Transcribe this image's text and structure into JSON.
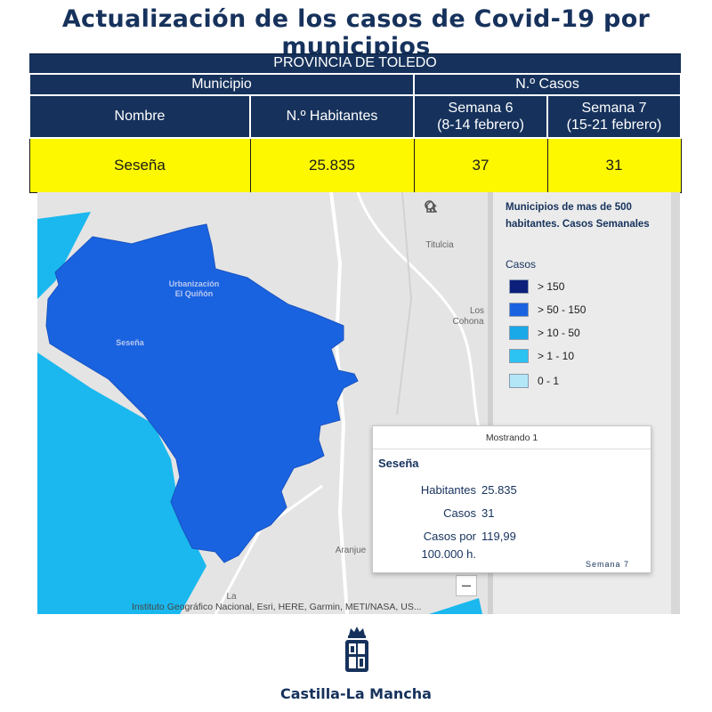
{
  "title": "Actualización de los casos de Covid-19 por municipios",
  "table": {
    "province": "PROVINCIA DE TOLEDO",
    "group_municipio": "Municipio",
    "group_casos": "N.º Casos",
    "col_nombre": "Nombre",
    "col_habitantes": "N.º Habitantes",
    "col_semana6_line1": "Semana 6",
    "col_semana6_line2": "(8-14 febrero)",
    "col_semana7_line1": "Semana 7",
    "col_semana7_line2": "(15-21 febrero)",
    "row": {
      "nombre": "Seseña",
      "habitantes": "25.835",
      "semana6": "37",
      "semana7": "31"
    }
  },
  "map": {
    "labels": {
      "urbanizacion_line1": "Urbanización",
      "urbanizacion_line2": "El Quiñón",
      "sesena": "Seseña",
      "titulcia": "Titulcia",
      "los": "Los",
      "cohona": "Cohona",
      "aranjue": "Aranjue",
      "la": "La"
    },
    "attribution": "Instituto Geográfico Nacional, Esri, HERE, Garmin, METI/NASA, US...",
    "zoom_out": "–",
    "colors": {
      "base": "#e4e4e4",
      "sesena_fill": "#1a63e0",
      "neighbor_fill": "#1ab8ee",
      "road": "#ffffff"
    }
  },
  "legend": {
    "title": "Municipios de mas de 500 habitantes. Casos Semanales",
    "cases_label": "Casos",
    "items": [
      {
        "label": "> 150",
        "color": "#0c1f7a"
      },
      {
        "label": "> 50 - 150",
        "color": "#1a63e0"
      },
      {
        "label": "> 10 - 50",
        "color": "#19a9e8"
      },
      {
        "label": "> 1 - 10",
        "color": "#2cc3f2"
      },
      {
        "label": "0 - 1",
        "color": "#b3e6f7"
      }
    ]
  },
  "popup": {
    "header": "Mostrando 1",
    "name": "Seseña",
    "habitantes_label": "Habitantes",
    "habitantes_value": "25.835",
    "casos_label": "Casos",
    "casos_value": "31",
    "casos_por_label_line1": "Casos por",
    "casos_por_label_line2": "100.000 h.",
    "casos_por_value": "119,99",
    "footer": "Semana 7"
  },
  "logo": {
    "text": "Castilla-La Mancha",
    "color": "#16325c"
  }
}
